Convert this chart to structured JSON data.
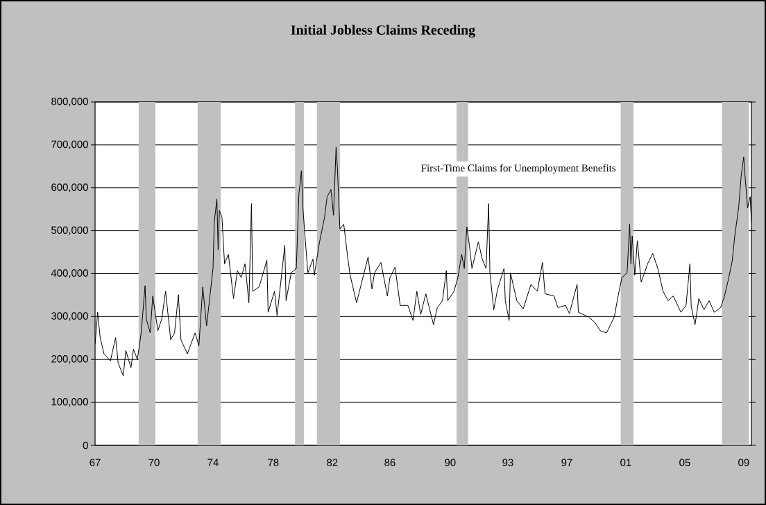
{
  "chart_data": {
    "type": "line",
    "title": "Initial Jobless Claims Receding",
    "x": [
      "1967-01",
      "1967-03",
      "1967-05",
      "1967-08",
      "1968-01",
      "1968-05",
      "1968-07",
      "1968-11",
      "1969-01",
      "1969-05",
      "1969-07",
      "1969-10",
      "1970-01",
      "1970-04",
      "1970-05",
      "1970-08",
      "1970-10",
      "1971-02",
      "1971-05",
      "1971-08",
      "1971-12",
      "1972-03",
      "1972-06",
      "1972-08",
      "1973-01",
      "1973-07",
      "1973-10",
      "1974-01",
      "1974-04",
      "1974-09",
      "1974-10",
      "1974-12",
      "1975-01",
      "1975-02",
      "1975-04",
      "1975-06",
      "1975-09",
      "1976-01",
      "1976-04",
      "1976-07",
      "1976-10",
      "1977-01",
      "1977-03",
      "1977-04",
      "1977-09",
      "1978-03",
      "1978-04",
      "1978-09",
      "1978-11",
      "1979-05",
      "1979-06",
      "1979-10",
      "1980-02",
      "1980-04",
      "1980-06",
      "1980-07",
      "1980-09",
      "1980-11",
      "1981-03",
      "1981-04",
      "1981-08",
      "1981-12",
      "1982-02",
      "1982-05",
      "1982-07",
      "1982-09",
      "1982-10",
      "1982-12",
      "1983-03",
      "1983-06",
      "1983-08",
      "1984-01",
      "1984-05",
      "1984-10",
      "1985-01",
      "1985-03",
      "1985-08",
      "1986-01",
      "1986-03",
      "1986-07",
      "1986-11",
      "1987-05",
      "1987-09",
      "1987-12",
      "1988-03",
      "1988-07",
      "1989-01",
      "1989-04",
      "1989-08",
      "1989-11",
      "1989-12",
      "1990-05",
      "1990-08",
      "1990-11",
      "1991-01",
      "1991-03",
      "1991-05",
      "1991-07",
      "1991-12",
      "1992-03",
      "1992-06",
      "1992-08",
      "1992-09",
      "1992-12",
      "1993-03",
      "1993-08",
      "1993-09",
      "1993-12",
      "1994-01",
      "1994-06",
      "1994-11",
      "1995-05",
      "1995-10",
      "1996-02",
      "1996-04",
      "1996-11",
      "1997-02",
      "1997-08",
      "1997-11",
      "1998-05",
      "1998-06",
      "1999-02",
      "1999-07",
      "1999-11",
      "2000-04",
      "2000-10",
      "2001-01",
      "2001-04",
      "2001-08",
      "2001-10",
      "2001-11",
      "2001-12",
      "2002-02",
      "2002-04",
      "2002-07",
      "2002-12",
      "2003-04",
      "2003-08",
      "2003-12",
      "2004-04",
      "2004-08",
      "2005-02",
      "2005-06",
      "2005-09",
      "2005-10",
      "2006-01",
      "2006-04",
      "2006-08",
      "2006-12",
      "2007-04",
      "2007-09",
      "2007-12",
      "2008-03",
      "2008-06",
      "2008-08",
      "2008-11",
      "2009-01",
      "2009-03",
      "2009-04",
      "2009-06",
      "2009-08",
      "2009-09"
    ],
    "series": [
      {
        "name": "First-Time Claims for Unemployment Benefits",
        "color": "#000000",
        "values": [
          235000,
          310000,
          251000,
          213000,
          197000,
          251000,
          192000,
          162000,
          221000,
          181000,
          224000,
          200000,
          262000,
          372000,
          294000,
          262000,
          348000,
          267000,
          294000,
          359000,
          246000,
          262000,
          351000,
          246000,
          213000,
          262000,
          232000,
          369000,
          278000,
          412000,
          520000,
          574000,
          456000,
          547000,
          531000,
          423000,
          445000,
          342000,
          407000,
          391000,
          423000,
          332000,
          563000,
          359000,
          369000,
          431000,
          310000,
          359000,
          302000,
          466000,
          337000,
          402000,
          412000,
          585000,
          640000,
          558000,
          477000,
          402000,
          434000,
          396000,
          472000,
          531000,
          579000,
          596000,
          536000,
          695000,
          649000,
          504000,
          515000,
          439000,
          396000,
          332000,
          380000,
          439000,
          364000,
          402000,
          426000,
          348000,
          391000,
          415000,
          326000,
          326000,
          291000,
          359000,
          305000,
          353000,
          281000,
          321000,
          337000,
          407000,
          337000,
          359000,
          391000,
          445000,
          412000,
          509000,
          466000,
          412000,
          474000,
          434000,
          412000,
          563000,
          402000,
          316000,
          364000,
          412000,
          337000,
          291000,
          402000,
          337000,
          318000,
          375000,
          359000,
          426000,
          353000,
          348000,
          321000,
          326000,
          307000,
          375000,
          310000,
          299000,
          286000,
          267000,
          262000,
          299000,
          348000,
          391000,
          402000,
          515000,
          423000,
          488000,
          396000,
          477000,
          380000,
          423000,
          447000,
          412000,
          359000,
          337000,
          348000,
          310000,
          326000,
          423000,
          324000,
          281000,
          342000,
          316000,
          337000,
          310000,
          321000,
          348000,
          386000,
          429000,
          488000,
          553000,
          628000,
          672000,
          628000,
          553000,
          579000,
          520000
        ]
      }
    ],
    "xlim": [
      "1967-01",
      "2009-09"
    ],
    "xticks": [
      {
        "value": "1967-01",
        "label": "67"
      },
      {
        "value": "1970-11",
        "label": "70"
      },
      {
        "value": "1974-09",
        "label": "74"
      },
      {
        "value": "1978-08",
        "label": "78"
      },
      {
        "value": "1982-06",
        "label": "82"
      },
      {
        "value": "1986-03",
        "label": "86"
      },
      {
        "value": "1990-02",
        "label": "90"
      },
      {
        "value": "1993-11",
        "label": "93"
      },
      {
        "value": "1997-09",
        "label": "97"
      },
      {
        "value": "2001-07",
        "label": "01"
      },
      {
        "value": "2005-05",
        "label": "05"
      },
      {
        "value": "2009-03",
        "label": "09"
      }
    ],
    "ylim": [
      0,
      800000
    ],
    "yticks": [
      {
        "value": 0,
        "label": "0"
      },
      {
        "value": 100000,
        "label": "100,000"
      },
      {
        "value": 200000,
        "label": "200,000"
      },
      {
        "value": 300000,
        "label": "300,000"
      },
      {
        "value": 400000,
        "label": "400,000"
      },
      {
        "value": 500000,
        "label": "500,000"
      },
      {
        "value": 600000,
        "label": "600,000"
      },
      {
        "value": 700000,
        "label": "700,000"
      },
      {
        "value": 800000,
        "label": "800,000"
      }
    ],
    "grid": "y",
    "bands": [
      {
        "axis": "x",
        "from": "1969-11",
        "to": "1970-12",
        "color": "#c0c0c0"
      },
      {
        "axis": "x",
        "from": "1973-09",
        "to": "1975-03",
        "color": "#c0c0c0"
      },
      {
        "axis": "x",
        "from": "1980-01",
        "to": "1980-08",
        "color": "#c0c0c0"
      },
      {
        "axis": "x",
        "from": "1981-06",
        "to": "1982-12",
        "color": "#c0c0c0"
      },
      {
        "axis": "x",
        "from": "1990-07",
        "to": "1991-04",
        "color": "#c0c0c0"
      },
      {
        "axis": "x",
        "from": "2001-03",
        "to": "2002-01",
        "color": "#c0c0c0"
      },
      {
        "axis": "x",
        "from": "2007-10",
        "to": "2009-07",
        "color": "#c0c0c0"
      }
    ]
  }
}
